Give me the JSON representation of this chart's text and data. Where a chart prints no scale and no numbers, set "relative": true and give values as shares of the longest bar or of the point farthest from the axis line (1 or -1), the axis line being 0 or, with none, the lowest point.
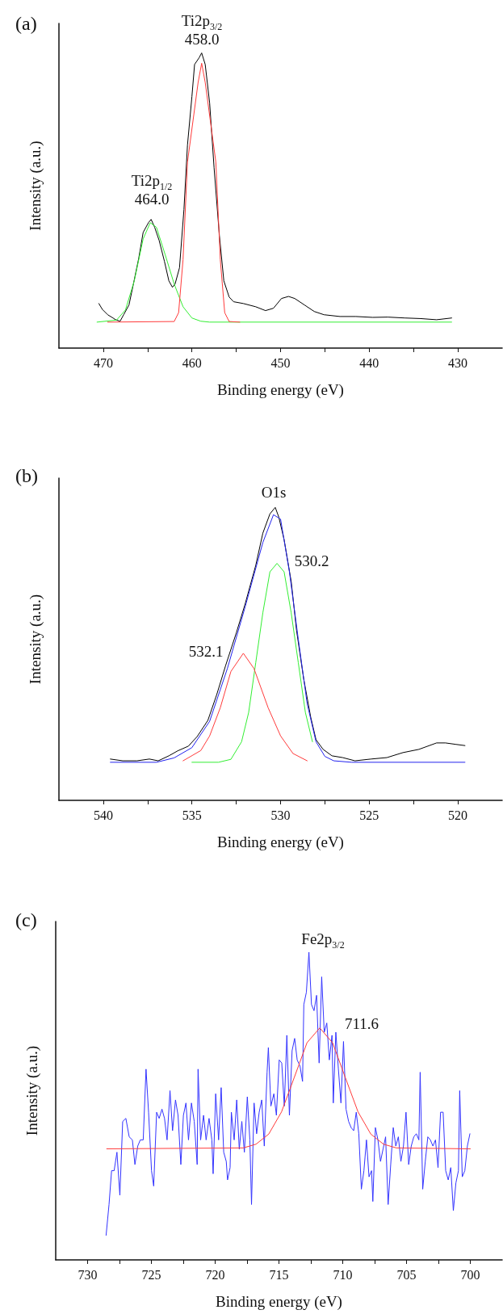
{
  "chart_data": [
    {
      "type": "line",
      "title": "(a)",
      "xlabel": "Binding energy (eV)",
      "ylabel": "Intensity (a.u.)",
      "relative": true,
      "marker": "none",
      "line_style": "solid",
      "xlim": [
        475,
        425
      ],
      "xticks": [
        470,
        {
          "value": 465,
          "label": null
        },
        460,
        {
          "value": 455,
          "label": null
        },
        450,
        {
          "value": 445,
          "label": null
        },
        440,
        {
          "value": 435,
          "label": null
        },
        430
      ],
      "annotations": [
        "Ti2p$_{3/2}$\n458.0",
        "Ti2p$_{1/2}$\n464.0"
      ],
      "series": [
        {
          "color": "#000000",
          "x": [
            470.5,
            470.1,
            469.5,
            468.9,
            468.6,
            468.1,
            467.7,
            467.1,
            466.6,
            466.0,
            465.5,
            464.9,
            464.6,
            464.2,
            463.7,
            463.1,
            462.6,
            462.2,
            461.9,
            461.4,
            460.9,
            460.5,
            460.0,
            459.7,
            459.2,
            458.9,
            458.5,
            458.0,
            457.5,
            456.9,
            456.4,
            455.8,
            455.3,
            454.2,
            452.8,
            451.7,
            450.8,
            449.9,
            449.1,
            448.4,
            447.3,
            446.2,
            445.1,
            443.3,
            441.5,
            439.6,
            437.9,
            436.0,
            434.2,
            432.4,
            430.7
          ],
          "values": [
            0.151,
            0.131,
            0.113,
            0.102,
            0.096,
            0.091,
            0.113,
            0.146,
            0.217,
            0.304,
            0.392,
            0.425,
            0.436,
            0.409,
            0.365,
            0.294,
            0.228,
            0.206,
            0.217,
            0.272,
            0.469,
            0.688,
            0.852,
            0.961,
            0.983,
            1,
            0.961,
            0.83,
            0.611,
            0.381,
            0.228,
            0.173,
            0.157,
            0.151,
            0.14,
            0.127,
            0.135,
            0.168,
            0.175,
            0.168,
            0.146,
            0.124,
            0.113,
            0.107,
            0.107,
            0.104,
            0.105,
            0.102,
            0.1,
            0.096,
            0.102
          ]
        },
        {
          "color": "#33ee33",
          "x": [
            470.7,
            468.5,
            467.5,
            466.5,
            465.5,
            464.7,
            464.0,
            463.0,
            462.0,
            461.0,
            460.0,
            459.0,
            458.0,
            430.7
          ],
          "values": [
            0.088,
            0.095,
            0.129,
            0.228,
            0.37,
            0.425,
            0.409,
            0.315,
            0.217,
            0.14,
            0.102,
            0.091,
            0.088,
            0.088
          ]
        },
        {
          "color": "#ff3b3b",
          "x": [
            469.5,
            462.0,
            461.5,
            461.0,
            460.5,
            459.3,
            458.9,
            458.5,
            457.3,
            456.8,
            456.3,
            455.8,
            454.6
          ],
          "values": [
            0.088,
            0.09,
            0.12,
            0.3,
            0.63,
            0.9,
            0.965,
            0.9,
            0.63,
            0.3,
            0.12,
            0.09,
            0.088
          ]
        }
      ]
    },
    {
      "type": "line",
      "title": "(b)",
      "xlabel": "Binding energy (eV)",
      "ylabel": "Intensity (a.u.)",
      "relative": true,
      "marker": "none",
      "line_style": "solid",
      "xlim": [
        542.5,
        517.5
      ],
      "xticks": [
        540,
        {
          "value": 537.5,
          "label": null
        },
        535,
        {
          "value": 532.5,
          "label": null
        },
        530,
        {
          "value": 527.5,
          "label": null
        },
        525,
        {
          "value": 522.5,
          "label": null
        },
        520
      ],
      "annotations": [
        "O1s",
        "530.2",
        "532.1"
      ],
      "series": [
        {
          "color": "#000000",
          "x": [
            539.6,
            538.9,
            538.1,
            537.4,
            536.9,
            536.3,
            535.8,
            535.2,
            534.7,
            534.1,
            533.6,
            533.1,
            532.5,
            532.0,
            531.4,
            531.0,
            530.6,
            530.3,
            530.1,
            529.8,
            529.4,
            529.1,
            528.7,
            528.3,
            528.0,
            527.6,
            527.1,
            526.5,
            525.8,
            524.9,
            524.0,
            523.1,
            522.2,
            521.2,
            520.7,
            520.1,
            519.6
          ],
          "values": [
            0.141,
            0.135,
            0.135,
            0.141,
            0.135,
            0.152,
            0.169,
            0.185,
            0.218,
            0.273,
            0.361,
            0.46,
            0.571,
            0.67,
            0.802,
            0.912,
            0.978,
            1,
            0.967,
            0.89,
            0.747,
            0.581,
            0.416,
            0.284,
            0.207,
            0.174,
            0.152,
            0.146,
            0.135,
            0.141,
            0.146,
            0.163,
            0.174,
            0.196,
            0.196,
            0.191,
            0.187
          ]
        },
        {
          "color": "#2222ee",
          "x": [
            539.6,
            537.0,
            536.0,
            535.0,
            534.0,
            533.0,
            532.0,
            531.0,
            530.4,
            530.0,
            529.5,
            529.0,
            528.5,
            528.0,
            527.5,
            527.0,
            526.0,
            519.6
          ],
          "values": [
            0.13,
            0.13,
            0.145,
            0.18,
            0.27,
            0.45,
            0.66,
            0.88,
            0.975,
            0.96,
            0.78,
            0.55,
            0.33,
            0.2,
            0.15,
            0.135,
            0.13,
            0.13
          ]
        },
        {
          "color": "#33ee33",
          "x": [
            535.0,
            533.5,
            532.8,
            532.2,
            531.8,
            531.4,
            531.0,
            530.6,
            530.2,
            529.8,
            529.4,
            529.0,
            528.6,
            528.2
          ],
          "values": [
            0.13,
            0.13,
            0.14,
            0.2,
            0.3,
            0.47,
            0.64,
            0.78,
            0.809,
            0.78,
            0.64,
            0.47,
            0.3,
            0.2
          ]
        },
        {
          "color": "#ff3b3b",
          "x": [
            535.5,
            534.5,
            534.0,
            533.4,
            532.8,
            532.1,
            531.5,
            530.7,
            530.0,
            529.3,
            528.5
          ],
          "values": [
            0.135,
            0.17,
            0.22,
            0.316,
            0.44,
            0.502,
            0.45,
            0.316,
            0.22,
            0.16,
            0.135
          ]
        }
      ]
    },
    {
      "type": "line",
      "title": "(c)",
      "xlabel": "Binding energy (eV)",
      "ylabel": "Intensity (a.u.)",
      "relative": true,
      "marker": "none",
      "line_style": "solid",
      "xlim": [
        732.5,
        697.5
      ],
      "xticks": [
        730,
        {
          "value": 727.5,
          "label": null
        },
        725,
        {
          "value": 722.5,
          "label": null
        },
        720,
        {
          "value": 717.5,
          "label": null
        },
        715,
        {
          "value": 712.5,
          "label": null
        },
        710,
        {
          "value": 707.5,
          "label": null
        },
        705,
        {
          "value": 702.5,
          "label": null
        },
        700
      ],
      "annotations": [
        "Fe2p$_{3/2}$",
        "711.6"
      ],
      "series": [
        {
          "color": "#3333ff",
          "x": [
            728.55,
            728.32,
            728.12,
            727.92,
            727.7,
            727.47,
            727.25,
            727.0,
            726.74,
            726.49,
            726.29,
            726.07,
            725.87,
            725.64,
            725.42,
            725.22,
            724.99,
            724.82,
            724.59,
            724.39,
            724.17,
            723.97,
            723.77,
            723.54,
            723.34,
            723.11,
            722.91,
            722.69,
            722.49,
            722.29,
            722.09,
            721.86,
            721.64,
            721.41,
            721.34,
            721.14,
            720.91,
            720.71,
            720.48,
            720.26,
            720.16,
            719.96,
            719.73,
            719.53,
            719.33,
            719.13,
            719.03,
            718.83,
            718.73,
            718.51,
            718.31,
            718.11,
            717.91,
            717.71,
            717.48,
            717.28,
            717.15,
            716.95,
            716.75,
            716.55,
            716.35,
            716.15,
            715.93,
            715.83,
            715.63,
            715.4,
            715.2,
            714.98,
            714.78,
            714.58,
            714.38,
            714.18,
            713.97,
            713.77,
            713.57,
            713.35,
            713.15,
            713.05,
            712.85,
            712.65,
            712.45,
            712.25,
            712.05,
            711.85,
            711.65,
            711.45,
            711.25,
            711.05,
            710.84,
            710.74,
            710.54,
            710.34,
            710.14,
            709.94,
            709.74,
            709.54,
            709.34,
            709.14,
            708.94,
            708.74,
            708.54,
            708.34,
            708.14,
            707.94,
            707.74,
            707.64,
            707.44,
            707.24,
            707.04,
            706.84,
            706.64,
            706.44,
            706.24,
            706.04,
            705.84,
            705.64,
            705.44,
            705.24,
            705.04,
            704.83,
            704.63,
            704.43,
            704.23,
            704.03,
            703.93,
            703.73,
            703.53,
            703.33,
            703.13,
            702.93,
            702.73,
            702.53,
            702.33,
            702.13,
            701.93,
            701.73,
            701.53,
            701.33,
            701.13,
            700.93,
            700.83,
            700.63,
            700.43,
            700.23,
            700.03
          ],
          "values": [
            0.08,
            0.18,
            0.29,
            0.29,
            0.35,
            0.21,
            0.45,
            0.46,
            0.4,
            0.39,
            0.31,
            0.37,
            0.39,
            0.39,
            0.62,
            0.48,
            0.29,
            0.24,
            0.48,
            0.46,
            0.49,
            0.46,
            0.39,
            0.55,
            0.42,
            0.52,
            0.47,
            0.31,
            0.47,
            0.51,
            0.39,
            0.51,
            0.45,
            0.31,
            0.62,
            0.39,
            0.47,
            0.39,
            0.46,
            0.39,
            0.28,
            0.54,
            0.39,
            0.56,
            0.35,
            0.32,
            0.26,
            0.3,
            0.48,
            0.39,
            0.52,
            0.36,
            0.45,
            0.35,
            0.53,
            0.39,
            0.18,
            0.51,
            0.41,
            0.48,
            0.52,
            0.37,
            0.61,
            0.69,
            0.5,
            0.54,
            0.47,
            0.65,
            0.64,
            0.5,
            0.73,
            0.47,
            0.68,
            0.72,
            0.65,
            0.63,
            0.58,
            0.83,
            0.87,
            1,
            0.83,
            0.81,
            0.86,
            0.64,
            0.92,
            0.74,
            0.77,
            0.65,
            0.73,
            0.51,
            0.74,
            0.62,
            0.51,
            0.71,
            0.49,
            0.45,
            0.43,
            0.42,
            0.48,
            0.41,
            0.23,
            0.29,
            0.39,
            0.27,
            0.29,
            0.19,
            0.43,
            0.39,
            0.32,
            0.36,
            0.4,
            0.18,
            0.31,
            0.43,
            0.37,
            0.4,
            0.32,
            0.37,
            0.48,
            0.31,
            0.37,
            0.4,
            0.41,
            0.39,
            0.61,
            0.23,
            0.32,
            0.4,
            0.39,
            0.37,
            0.39,
            0.3,
            0.48,
            0.48,
            0.29,
            0.26,
            0.3,
            0.16,
            0.25,
            0.29,
            0.55,
            0.27,
            0.29,
            0.37,
            0.41
          ]
        },
        {
          "color": "#ff3b3b",
          "x": [
            728.5,
            717.8,
            716.8,
            715.8,
            714.8,
            713.8,
            712.8,
            711.8,
            710.8,
            709.8,
            708.8,
            707.8,
            706.8,
            705.8,
            700.0
          ],
          "values": [
            0.361,
            0.364,
            0.376,
            0.409,
            0.481,
            0.593,
            0.706,
            0.754,
            0.706,
            0.593,
            0.481,
            0.409,
            0.376,
            0.364,
            0.361
          ]
        }
      ]
    }
  ]
}
